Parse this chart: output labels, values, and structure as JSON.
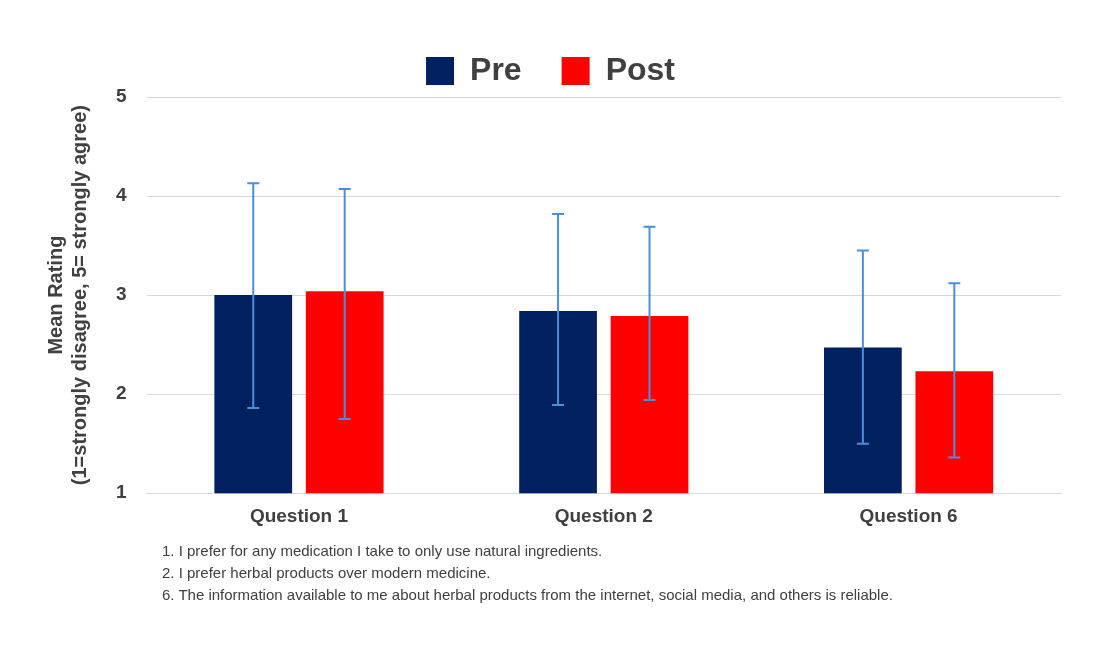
{
  "chart_data": {
    "type": "bar",
    "ylabel": "Mean Rating\n(1=strongly disagree, 5= strongly agree)",
    "categories": [
      "Question 1",
      "Question 2",
      "Question 6"
    ],
    "series": [
      {
        "name": "Pre",
        "color": "#002060",
        "values": [
          3.0,
          2.84,
          2.47
        ],
        "errors": [
          [
            1.86,
            4.13
          ],
          [
            1.89,
            3.82
          ],
          [
            1.5,
            3.45
          ]
        ]
      },
      {
        "name": "Post",
        "color": "#ff0000",
        "values": [
          3.04,
          2.79,
          2.23
        ],
        "errors": [
          [
            1.75,
            4.07
          ],
          [
            1.94,
            3.69
          ],
          [
            1.36,
            3.12
          ]
        ]
      }
    ],
    "ylim": [
      1,
      5
    ],
    "yticks": [
      1,
      2,
      3,
      4,
      5
    ],
    "grid": "y",
    "legend": "top",
    "annotations": [
      "1. I prefer for any medication I take to only use natural ingredients.",
      "2. I prefer herbal products over modern medicine.",
      "6. The information available to me about herbal products from the internet, social media, and others is reliable."
    ]
  }
}
